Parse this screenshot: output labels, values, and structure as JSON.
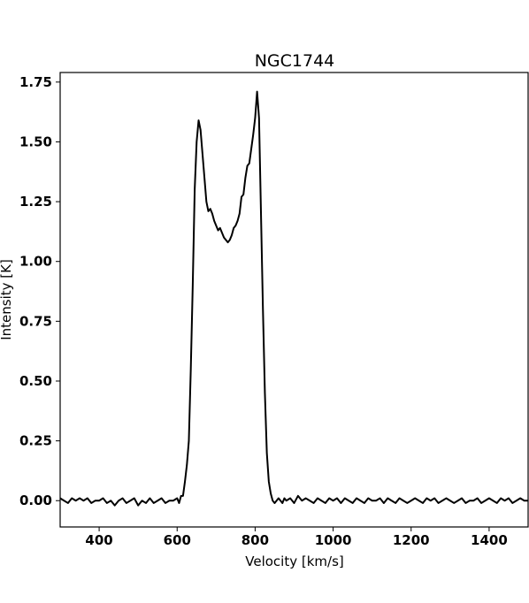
{
  "chart_data": {
    "type": "line",
    "title": "NGC1744",
    "xlabel": "Velocity [km/s]",
    "ylabel": "Intensity [K]",
    "xlim": [
      300,
      1500
    ],
    "ylim": [
      -0.11,
      1.79
    ],
    "x_ticks": [
      400,
      600,
      800,
      1000,
      1200,
      1400
    ],
    "x_tick_labels": [
      "400",
      "600",
      "800",
      "1000",
      "1200",
      "1400"
    ],
    "y_ticks": [
      0.0,
      0.25,
      0.5,
      0.75,
      1.0,
      1.25,
      1.5,
      1.75
    ],
    "y_tick_labels": [
      "0.00",
      "0.25",
      "0.50",
      "0.75",
      "1.00",
      "1.25",
      "1.50",
      "1.75"
    ],
    "grid": false,
    "line_color": "#000000",
    "series": [
      {
        "x": [
          300,
          310,
          320,
          330,
          340,
          350,
          360,
          370,
          380,
          390,
          400,
          410,
          420,
          430,
          440,
          450,
          460,
          470,
          480,
          490,
          500,
          510,
          520,
          530,
          540,
          550,
          560,
          570,
          580,
          590,
          600,
          605,
          610,
          615,
          620,
          625,
          630,
          635,
          640,
          645,
          650,
          655,
          660,
          665,
          670,
          675,
          680,
          685,
          690,
          695,
          700,
          705,
          710,
          715,
          720,
          725,
          730,
          735,
          740,
          745,
          750,
          755,
          760,
          765,
          770,
          775,
          780,
          785,
          790,
          795,
          800,
          805,
          810,
          815,
          820,
          825,
          830,
          835,
          840,
          845,
          850,
          855,
          860,
          865,
          870,
          875,
          880,
          890,
          900,
          910,
          920,
          930,
          940,
          950,
          960,
          970,
          980,
          990,
          1000,
          1010,
          1020,
          1030,
          1040,
          1050,
          1060,
          1070,
          1080,
          1090,
          1100,
          1110,
          1120,
          1130,
          1140,
          1150,
          1160,
          1170,
          1180,
          1190,
          1200,
          1210,
          1220,
          1230,
          1240,
          1250,
          1260,
          1270,
          1280,
          1290,
          1300,
          1310,
          1320,
          1330,
          1340,
          1350,
          1360,
          1370,
          1380,
          1390,
          1400,
          1410,
          1420,
          1430,
          1440,
          1450,
          1460,
          1470,
          1480,
          1490,
          1500
        ],
        "y": [
          0.01,
          0.0,
          -0.01,
          0.01,
          0.0,
          0.01,
          0.0,
          0.01,
          -0.01,
          0.0,
          0.0,
          0.01,
          -0.01,
          0.0,
          -0.02,
          0.0,
          0.01,
          -0.01,
          0.0,
          0.01,
          -0.02,
          0.0,
          -0.01,
          0.01,
          -0.01,
          0.0,
          0.01,
          -0.01,
          0.0,
          0.0,
          0.01,
          -0.01,
          0.02,
          0.02,
          0.08,
          0.15,
          0.25,
          0.55,
          0.9,
          1.3,
          1.5,
          1.59,
          1.55,
          1.45,
          1.35,
          1.25,
          1.21,
          1.22,
          1.2,
          1.17,
          1.15,
          1.13,
          1.14,
          1.12,
          1.1,
          1.09,
          1.08,
          1.09,
          1.11,
          1.14,
          1.15,
          1.17,
          1.2,
          1.27,
          1.28,
          1.35,
          1.4,
          1.41,
          1.47,
          1.53,
          1.6,
          1.71,
          1.6,
          1.2,
          0.8,
          0.45,
          0.2,
          0.08,
          0.03,
          0.0,
          -0.01,
          0.0,
          0.01,
          0.0,
          -0.01,
          0.01,
          0.0,
          0.01,
          -0.01,
          0.02,
          0.0,
          0.01,
          0.0,
          -0.01,
          0.01,
          0.0,
          -0.01,
          0.01,
          0.0,
          0.01,
          -0.01,
          0.01,
          0.0,
          -0.01,
          0.01,
          0.0,
          -0.01,
          0.01,
          0.0,
          0.0,
          0.01,
          -0.01,
          0.01,
          0.0,
          -0.01,
          0.01,
          0.0,
          -0.01,
          0.0,
          0.01,
          0.0,
          -0.01,
          0.01,
          0.0,
          0.01,
          -0.01,
          0.0,
          0.01,
          0.0,
          -0.01,
          0.0,
          0.01,
          -0.01,
          0.0,
          0.0,
          0.01,
          -0.01,
          0.0,
          0.01,
          0.0,
          -0.01,
          0.01,
          0.0,
          0.01,
          -0.01,
          0.0,
          0.01,
          0.0,
          0.0
        ]
      }
    ]
  }
}
